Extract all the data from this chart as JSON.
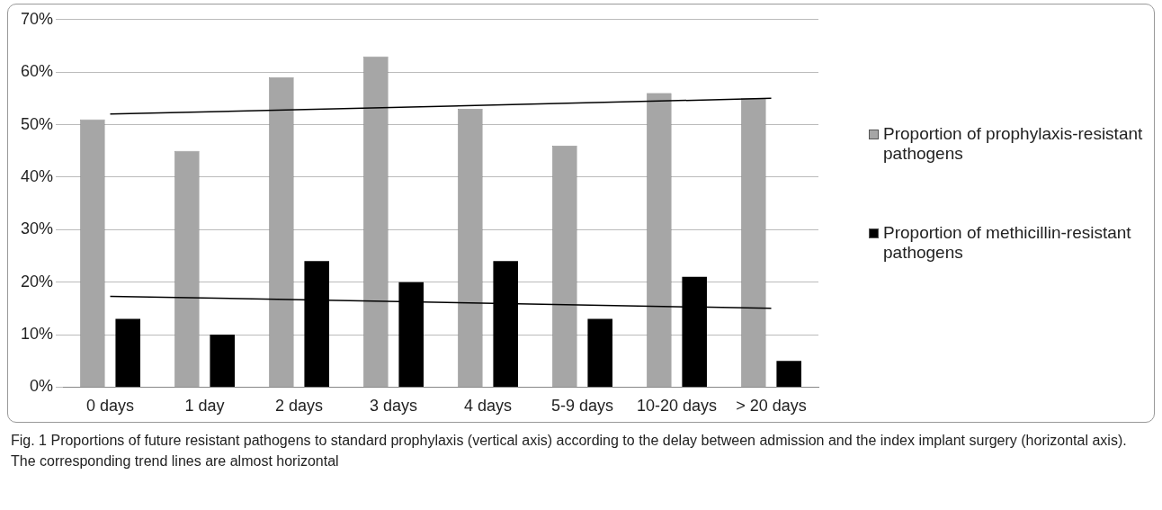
{
  "chart_data": {
    "type": "bar",
    "categories": [
      "0 days",
      "1 day",
      "2 days",
      "3 days",
      "4 days",
      "5-9 days",
      "10-20 days",
      "> 20 days"
    ],
    "series": [
      {
        "name": "Proportion of prophylaxis-resistant pathogens",
        "color": "#a6a6a6",
        "values": [
          51,
          45,
          59,
          63,
          53,
          46,
          56,
          55
        ]
      },
      {
        "name": "Proportion of methicillin-resistant pathogens",
        "color": "#000000",
        "values": [
          13,
          10,
          24,
          20,
          24,
          13,
          21,
          5
        ]
      },
      {
        "type": "line",
        "color": "#000000",
        "x": [
          "0 days",
          "> 20 days"
        ],
        "values": [
          52,
          55
        ]
      },
      {
        "type": "line",
        "color": "#000000",
        "x": [
          "0 days",
          "> 20 days"
        ],
        "values": [
          17.3,
          15
        ]
      }
    ],
    "ylim": [
      0,
      70
    ],
    "yticks": [
      {
        "value": 0,
        "label": "0%"
      },
      {
        "value": 10,
        "label": "10%"
      },
      {
        "value": 20,
        "label": "20%"
      },
      {
        "value": 30,
        "label": "30%"
      },
      {
        "value": 40,
        "label": "40%"
      },
      {
        "value": 50,
        "label": "50%"
      },
      {
        "value": 60,
        "label": "60%"
      },
      {
        "value": 70,
        "label": "70%"
      }
    ],
    "grid": "y",
    "legend": "right",
    "marker": "none",
    "line_style": "solid",
    "annotations": [
      "Fig. 1 Proportions of future resistant pathogens to standard prophylaxis (vertical axis) according to the delay between admission and the index implant surgery (horizontal axis). The corresponding trend lines are almost horizontal"
    ]
  }
}
